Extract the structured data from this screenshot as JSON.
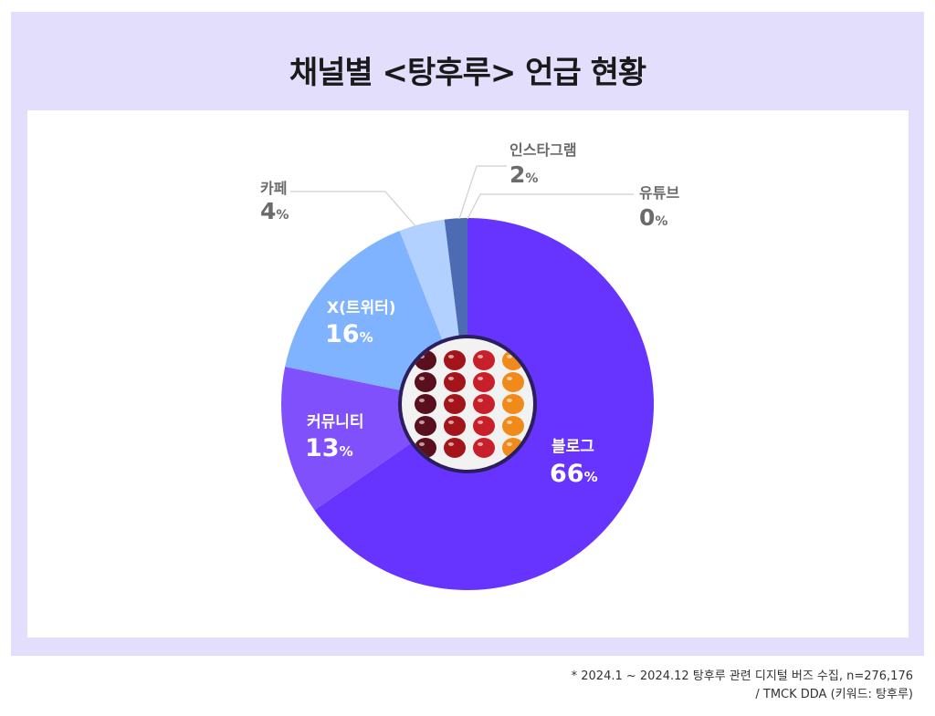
{
  "title": "채널별 <탕후루> 언급 현황",
  "chart_data": {
    "type": "pie",
    "donut": true,
    "slices": [
      {
        "label": "블로그",
        "value": 66,
        "pct_text": "66",
        "color": "#6633ff",
        "label_inside": true
      },
      {
        "label": "커뮤니티",
        "value": 13,
        "pct_text": "13",
        "color": "#7f50fb",
        "label_inside": true
      },
      {
        "label": "X(트위터)",
        "value": 16,
        "pct_text": "16",
        "color": "#80b3ff",
        "label_inside": true
      },
      {
        "label": "카페",
        "value": 4,
        "pct_text": "4",
        "color": "#b3d1ff",
        "label_inside": false
      },
      {
        "label": "인스타그램",
        "value": 2,
        "pct_text": "2",
        "color": "#4d6bb3",
        "label_inside": false
      },
      {
        "label": "유튜브",
        "value": 0,
        "pct_text": "0",
        "color": "#8a8a8a",
        "label_inside": false
      }
    ],
    "percent_sign": "%",
    "center_image": "tanghulu-fruit-photo"
  },
  "footnotes": [
    "* 2024.1 ~ 2024.12 탕후루 관련 디지털 버즈 수집, n=276,176",
    "/ TMCK DDA (키워드: 탕후루)"
  ]
}
